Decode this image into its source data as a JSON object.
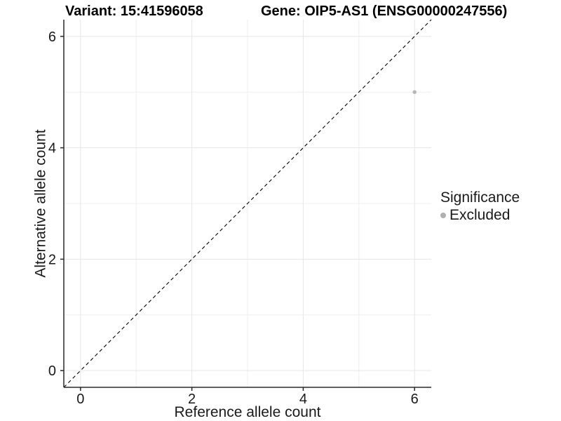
{
  "chart_data": {
    "type": "scatter",
    "titles": {
      "left": "Variant: 15:41596058",
      "right": "Gene: OIP5-AS1 (ENSG00000247556)"
    },
    "xlabel": "Reference allele count",
    "ylabel": "Alternative allele count",
    "xlim": [
      -0.3,
      6.3
    ],
    "ylim": [
      -0.3,
      6.3
    ],
    "x_ticks": [
      0,
      2,
      4,
      6
    ],
    "y_ticks": [
      0,
      2,
      4,
      6
    ],
    "x_minor_grid": [
      1,
      3,
      5
    ],
    "y_minor_grid": [
      1,
      3,
      5
    ],
    "grid": "on",
    "identity_line": {
      "slope": 1,
      "intercept": 0,
      "style": "dashed",
      "color": "#000000"
    },
    "series": [
      {
        "name": "Excluded",
        "color": "#b5b5b5",
        "marker": "circle",
        "points": [
          {
            "x": 6,
            "y": 5
          }
        ]
      }
    ],
    "legend": {
      "title": "Significance",
      "position": "right",
      "items": [
        {
          "label": "Excluded",
          "color": "#b0b0b0"
        }
      ]
    }
  },
  "colors": {
    "background": "#ffffff",
    "grid_major": "#e6e6e6",
    "grid_minor": "#efefef",
    "axis_line": "#2a2a2a",
    "axis_text": "#1a1a1a",
    "title_text": "#000000",
    "point": "#b5b5b5"
  }
}
